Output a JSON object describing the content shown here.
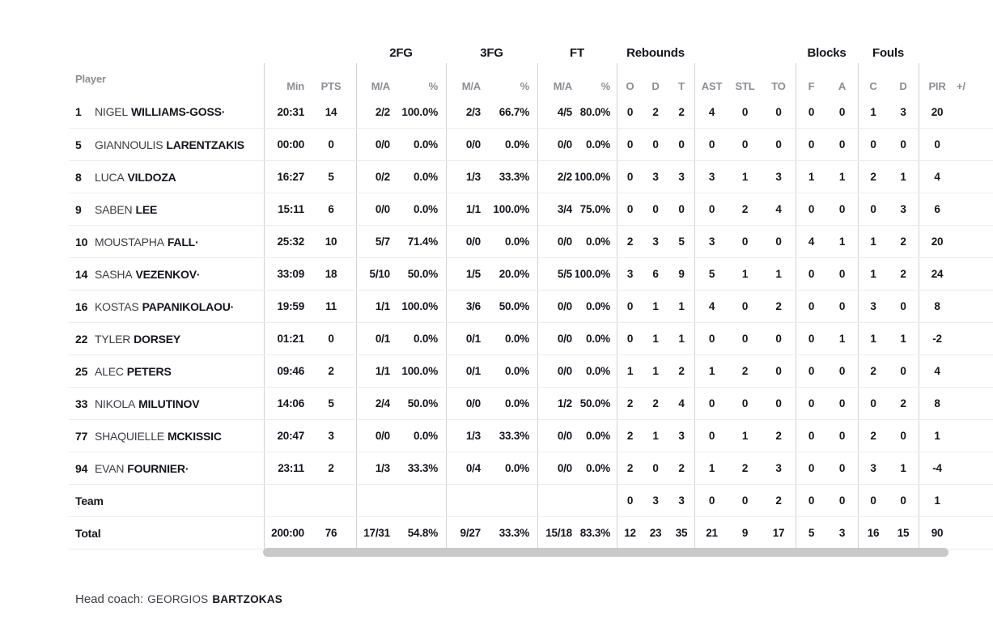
{
  "table": {
    "player_header": "Player",
    "groups": [
      "2FG",
      "3FG",
      "FT",
      "Rebounds",
      "Blocks",
      "Fouls"
    ],
    "sub_headers": [
      "Min",
      "PTS",
      "M/A",
      "%",
      "M/A",
      "%",
      "M/A",
      "%",
      "O",
      "D",
      "T",
      "AST",
      "STL",
      "TO",
      "F",
      "A",
      "C",
      "D",
      "PIR",
      "+/"
    ],
    "starter_mark": "·",
    "players": [
      {
        "num": "1",
        "first": "NIGEL",
        "last": "WILLIAMS-GOSS",
        "starter": true,
        "stats": [
          "20:31",
          "14",
          "2/2",
          "100.0%",
          "2/3",
          "66.7%",
          "4/5",
          "80.0%",
          "0",
          "2",
          "2",
          "4",
          "0",
          "0",
          "0",
          "0",
          "1",
          "3",
          "20",
          ""
        ]
      },
      {
        "num": "5",
        "first": "GIANNOULIS",
        "last": "LARENTZAKIS",
        "starter": false,
        "stats": [
          "00:00",
          "0",
          "0/0",
          "0.0%",
          "0/0",
          "0.0%",
          "0/0",
          "0.0%",
          "0",
          "0",
          "0",
          "0",
          "0",
          "0",
          "0",
          "0",
          "0",
          "0",
          "0",
          ""
        ]
      },
      {
        "num": "8",
        "first": "LUCA",
        "last": "VILDOZA",
        "starter": false,
        "stats": [
          "16:27",
          "5",
          "0/2",
          "0.0%",
          "1/3",
          "33.3%",
          "2/2",
          "100.0%",
          "0",
          "3",
          "3",
          "3",
          "1",
          "3",
          "1",
          "1",
          "2",
          "1",
          "4",
          ""
        ]
      },
      {
        "num": "9",
        "first": "SABEN",
        "last": "LEE",
        "starter": false,
        "stats": [
          "15:11",
          "6",
          "0/0",
          "0.0%",
          "1/1",
          "100.0%",
          "3/4",
          "75.0%",
          "0",
          "0",
          "0",
          "0",
          "2",
          "4",
          "0",
          "0",
          "0",
          "3",
          "6",
          ""
        ]
      },
      {
        "num": "10",
        "first": "MOUSTAPHA",
        "last": "FALL",
        "starter": true,
        "stats": [
          "25:32",
          "10",
          "5/7",
          "71.4%",
          "0/0",
          "0.0%",
          "0/0",
          "0.0%",
          "2",
          "3",
          "5",
          "3",
          "0",
          "0",
          "4",
          "1",
          "1",
          "2",
          "20",
          ""
        ]
      },
      {
        "num": "14",
        "first": "SASHA",
        "last": "VEZENKOV",
        "starter": true,
        "stats": [
          "33:09",
          "18",
          "5/10",
          "50.0%",
          "1/5",
          "20.0%",
          "5/5",
          "100.0%",
          "3",
          "6",
          "9",
          "5",
          "1",
          "1",
          "0",
          "0",
          "1",
          "2",
          "24",
          ""
        ]
      },
      {
        "num": "16",
        "first": "KOSTAS",
        "last": "PAPANIKOLAOU",
        "starter": true,
        "stats": [
          "19:59",
          "11",
          "1/1",
          "100.0%",
          "3/6",
          "50.0%",
          "0/0",
          "0.0%",
          "0",
          "1",
          "1",
          "4",
          "0",
          "2",
          "0",
          "0",
          "3",
          "0",
          "8",
          ""
        ]
      },
      {
        "num": "22",
        "first": "TYLER",
        "last": "DORSEY",
        "starter": false,
        "stats": [
          "01:21",
          "0",
          "0/1",
          "0.0%",
          "0/1",
          "0.0%",
          "0/0",
          "0.0%",
          "0",
          "1",
          "1",
          "0",
          "0",
          "0",
          "0",
          "1",
          "1",
          "1",
          "-2",
          ""
        ]
      },
      {
        "num": "25",
        "first": "ALEC",
        "last": "PETERS",
        "starter": false,
        "stats": [
          "09:46",
          "2",
          "1/1",
          "100.0%",
          "0/1",
          "0.0%",
          "0/0",
          "0.0%",
          "1",
          "1",
          "2",
          "1",
          "2",
          "0",
          "0",
          "0",
          "2",
          "0",
          "4",
          ""
        ]
      },
      {
        "num": "33",
        "first": "NIKOLA",
        "last": "MILUTINOV",
        "starter": false,
        "stats": [
          "14:06",
          "5",
          "2/4",
          "50.0%",
          "0/0",
          "0.0%",
          "1/2",
          "50.0%",
          "2",
          "2",
          "4",
          "0",
          "0",
          "0",
          "0",
          "0",
          "0",
          "2",
          "8",
          ""
        ]
      },
      {
        "num": "77",
        "first": "SHAQUIELLE",
        "last": "MCKISSIC",
        "starter": false,
        "stats": [
          "20:47",
          "3",
          "0/0",
          "0.0%",
          "1/3",
          "33.3%",
          "0/0",
          "0.0%",
          "2",
          "1",
          "3",
          "0",
          "1",
          "2",
          "0",
          "0",
          "2",
          "0",
          "1",
          ""
        ]
      },
      {
        "num": "94",
        "first": "EVAN",
        "last": "FOURNIER",
        "starter": true,
        "stats": [
          "23:11",
          "2",
          "1/3",
          "33.3%",
          "0/4",
          "0.0%",
          "0/0",
          "0.0%",
          "2",
          "0",
          "2",
          "1",
          "2",
          "3",
          "0",
          "0",
          "3",
          "1",
          "-4",
          ""
        ]
      }
    ],
    "team_row": {
      "label": "Team",
      "stats": [
        "",
        "",
        "",
        "",
        "",
        "",
        "",
        "",
        "0",
        "3",
        "3",
        "0",
        "0",
        "2",
        "0",
        "0",
        "0",
        "0",
        "1",
        ""
      ]
    },
    "total_row": {
      "label": "Total",
      "stats": [
        "200:00",
        "76",
        "17/31",
        "54.8%",
        "9/27",
        "33.3%",
        "15/18",
        "83.3%",
        "12",
        "23",
        "35",
        "21",
        "9",
        "17",
        "5",
        "3",
        "16",
        "15",
        "90",
        ""
      ]
    }
  },
  "footer": {
    "head_coach_label": "Head coach:",
    "coach_first": "GEORGIOS",
    "coach_last": "BARTZOKAS"
  },
  "colors": {
    "text_dark": "#15151d",
    "header_gray": "#8d8d94",
    "grid_line": "#d3d3d6",
    "row_line": "#ededee",
    "scrollbar_thumb": "#c9c9c9"
  }
}
